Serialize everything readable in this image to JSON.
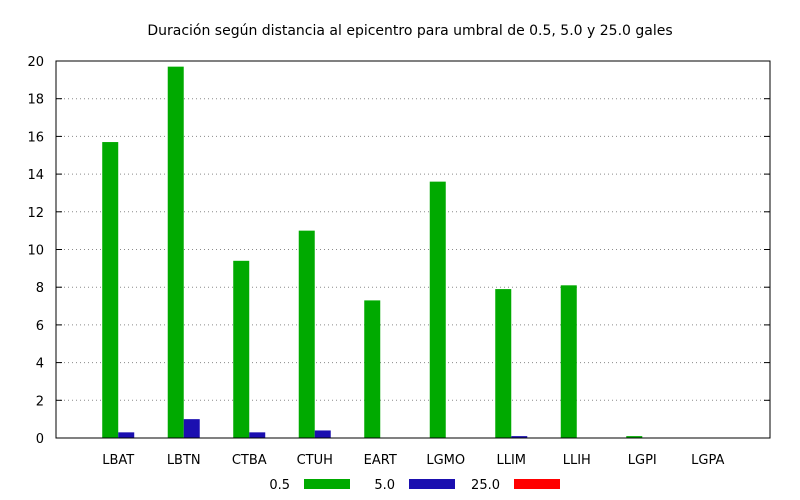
{
  "chart_data": {
    "type": "bar",
    "title": "Duración según distancia al epicentro para umbral de 0.5, 5.0 y 25.0 gales",
    "xlabel": "",
    "ylabel": "",
    "ylim": [
      0,
      20
    ],
    "yticks": [
      "0",
      "2",
      "4",
      "6",
      "8",
      "10",
      "12",
      "14",
      "16",
      "18",
      "20"
    ],
    "grid": "horizontal dotted",
    "legend_position": "bottom",
    "categories": [
      "LBAT",
      "LBTN",
      "CTBA",
      "CTUH",
      "EART",
      "LGMO",
      "LLIM",
      "LLIH",
      "LGPI",
      "LGPA"
    ],
    "series": [
      {
        "name": "0.5",
        "color": "#00aa00",
        "values": [
          15.7,
          19.7,
          9.4,
          11.0,
          7.3,
          13.6,
          7.9,
          8.1,
          0.1,
          0.0
        ]
      },
      {
        "name": "5.0",
        "color": "#1b0fb0",
        "values": [
          0.3,
          1.0,
          0.3,
          0.4,
          0.0,
          0.0,
          0.1,
          0.0,
          0.0,
          0.0
        ]
      },
      {
        "name": "25.0",
        "color": "#ff0000",
        "values": [
          0,
          0,
          0,
          0,
          0,
          0,
          0,
          0,
          0,
          0
        ]
      }
    ]
  }
}
